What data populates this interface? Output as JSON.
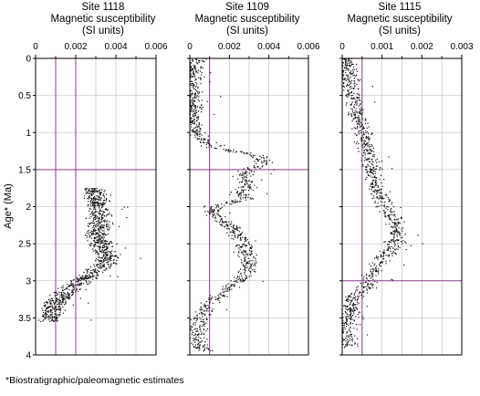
{
  "figure": {
    "y_axis_label": "Age* (Ma)",
    "footnote": "*Biostratigraphic/paleomagnetic estimates"
  },
  "chart_data": [
    {
      "type": "scatter",
      "title_line1": "Site 1118",
      "title_line2": "Magnetic susceptibility",
      "title_line3": "(SI units)",
      "xlim": [
        0,
        0.006
      ],
      "ylim": [
        4,
        0
      ],
      "x_ticks": [
        "0",
        "0.002",
        "0.004",
        "0.006"
      ],
      "y_ticks": [
        "0",
        "0.5",
        "1",
        "1.5",
        "2",
        "2.5",
        "3",
        "3.5",
        "4"
      ],
      "grid": true,
      "reference_lines": {
        "vertical_x": [
          0.001,
          0.002
        ],
        "horizontal_y": [
          1.5
        ],
        "color": "#8a3c8a"
      },
      "profile": [
        [
          1.75,
          0.0028
        ],
        [
          1.85,
          0.003
        ],
        [
          2.0,
          0.0031
        ],
        [
          2.2,
          0.0032
        ],
        [
          2.35,
          0.003
        ],
        [
          2.5,
          0.0033
        ],
        [
          2.65,
          0.0036
        ],
        [
          2.75,
          0.0035
        ],
        [
          2.85,
          0.003
        ],
        [
          2.95,
          0.0026
        ],
        [
          3.05,
          0.002
        ],
        [
          3.15,
          0.0015
        ],
        [
          3.25,
          0.0012
        ],
        [
          3.35,
          0.0009
        ],
        [
          3.45,
          0.0008
        ],
        [
          3.55,
          0.0007
        ]
      ],
      "spread": 0.0005
    },
    {
      "type": "scatter",
      "title_line1": "Site 1109",
      "title_line2": "Magnetic susceptibility",
      "title_line3": "(SI units)",
      "xlim": [
        0,
        0.006
      ],
      "ylim": [
        4,
        0
      ],
      "x_ticks": [
        "0",
        "0.002",
        "0.004",
        "0.006"
      ],
      "y_ticks": [
        "0",
        "0.5",
        "1",
        "1.5",
        "2",
        "2.5",
        "3",
        "3.5",
        "4"
      ],
      "grid": true,
      "reference_lines": {
        "vertical_x": [
          0.001
        ],
        "horizontal_y": [
          1.5
        ],
        "color": "#8a3c8a"
      },
      "profile": [
        [
          0.0,
          0.0003
        ],
        [
          0.1,
          0.0003
        ],
        [
          0.2,
          0.0002
        ],
        [
          0.4,
          0.0002
        ],
        [
          0.6,
          0.0002
        ],
        [
          0.8,
          0.0002
        ],
        [
          1.0,
          0.0003
        ],
        [
          1.1,
          0.0006
        ],
        [
          1.2,
          0.0012
        ],
        [
          1.3,
          0.0032
        ],
        [
          1.4,
          0.0038
        ],
        [
          1.5,
          0.003
        ],
        [
          1.6,
          0.0027
        ],
        [
          1.7,
          0.003
        ],
        [
          1.8,
          0.0024
        ],
        [
          1.9,
          0.0028
        ],
        [
          2.0,
          0.0012
        ],
        [
          2.1,
          0.0013
        ],
        [
          2.2,
          0.0016
        ],
        [
          2.3,
          0.0022
        ],
        [
          2.45,
          0.0027
        ],
        [
          2.6,
          0.0027
        ],
        [
          2.75,
          0.003
        ],
        [
          2.9,
          0.0028
        ],
        [
          3.0,
          0.0025
        ],
        [
          3.1,
          0.002
        ],
        [
          3.2,
          0.0015
        ],
        [
          3.3,
          0.001
        ],
        [
          3.4,
          0.0007
        ],
        [
          3.5,
          0.0005
        ],
        [
          3.6,
          0.0004
        ],
        [
          3.7,
          0.0004
        ],
        [
          3.85,
          0.0005
        ],
        [
          3.95,
          0.0009
        ]
      ],
      "spread": 0.0004
    },
    {
      "type": "scatter",
      "title_line1": "Site 1115",
      "title_line2": "Magnetic susceptibility",
      "title_line3": "(SI units)",
      "xlim": [
        0,
        0.003
      ],
      "ylim": [
        4,
        0
      ],
      "x_ticks": [
        "0",
        "0.001",
        "0.002",
        "0.003"
      ],
      "y_ticks": [
        "0",
        "0.5",
        "1",
        "1.5",
        "2",
        "2.5",
        "3",
        "3.5",
        "4"
      ],
      "grid": true,
      "reference_lines": {
        "vertical_x": [
          0.0005
        ],
        "horizontal_y": [
          3.0
        ],
        "color": "#8a3c8a"
      },
      "profile": [
        [
          0.0,
          0.00012
        ],
        [
          0.2,
          0.00015
        ],
        [
          0.4,
          0.00022
        ],
        [
          0.6,
          0.0003
        ],
        [
          0.8,
          0.0004
        ],
        [
          1.0,
          0.0005
        ],
        [
          1.2,
          0.0006
        ],
        [
          1.4,
          0.0007
        ],
        [
          1.6,
          0.0008
        ],
        [
          1.8,
          0.0009
        ],
        [
          2.0,
          0.0011
        ],
        [
          2.2,
          0.0013
        ],
        [
          2.4,
          0.0014
        ],
        [
          2.6,
          0.0012
        ],
        [
          2.8,
          0.0009
        ],
        [
          2.95,
          0.0007
        ],
        [
          3.1,
          0.0006
        ],
        [
          3.2,
          0.0003
        ],
        [
          3.4,
          0.0002
        ],
        [
          3.6,
          0.00015
        ],
        [
          3.8,
          0.00015
        ],
        [
          3.9,
          0.0002
        ]
      ],
      "spread": 0.0002
    }
  ]
}
